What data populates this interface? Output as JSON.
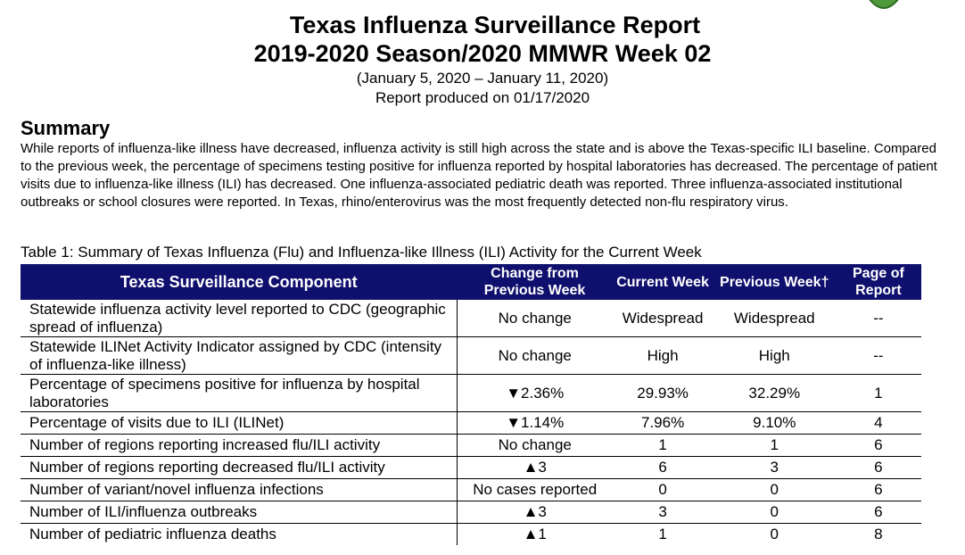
{
  "report": {
    "title_line1": "Texas Influenza Surveillance Report",
    "title_line2": "2019-2020 Season/2020 MMWR Week 02",
    "date_range": "(January 5, 2020 – January 11, 2020)",
    "produced": "Report produced on 01/17/2020"
  },
  "summary": {
    "heading": "Summary",
    "text": "While reports of influenza-like illness have decreased, influenza activity is still high across the state and is above the Texas-specific ILI baseline. Compared to the previous week, the percentage of specimens testing positive for influenza reported by hospital laboratories has decreased. The percentage of patient visits due to influenza-like illness (ILI) has decreased. One influenza-associated pediatric death was reported. Three influenza-associated institutional outbreaks or school closures were reported.  In Texas, rhino/enterovirus was the most frequently detected non-flu respiratory virus."
  },
  "table": {
    "caption": "Table 1: Summary of Texas Influenza (Flu) and Influenza-like Illness (ILI) Activity for the Current Week",
    "headers": {
      "component": "Texas Surveillance Component",
      "change": "Change from Previous Week",
      "current": "Current Week",
      "previous": "Previous Week†",
      "page": "Page of Report"
    },
    "rows": [
      {
        "component": "Statewide influenza activity level reported to CDC (geographic spread of influenza)",
        "change": "No change",
        "current": "Widespread",
        "previous": "Widespread",
        "page": "--"
      },
      {
        "component": "Statewide ILINet Activity Indicator assigned by CDC (intensity of influenza-like illness)",
        "change": "No change",
        "current": "High",
        "previous": "High",
        "page": "--"
      },
      {
        "component": "Percentage of specimens positive for influenza by hospital laboratories",
        "change": "▼2.36%",
        "current": "29.93%",
        "previous": "32.29%",
        "page": "1"
      },
      {
        "component": "Percentage of visits due to ILI (ILINet)",
        "change": "▼1.14%",
        "current": "7.96%",
        "previous": "9.10%",
        "page": "4"
      },
      {
        "component": "Number of regions reporting increased flu/ILI activity",
        "change": "No change",
        "current": "1",
        "previous": "1",
        "page": "6"
      },
      {
        "component": "Number of regions reporting decreased flu/ILI activity",
        "change": "▲3",
        "current": "6",
        "previous": "3",
        "page": "6"
      },
      {
        "component": "Number of variant/novel influenza infections",
        "change": "No cases reported",
        "current": "0",
        "previous": "0",
        "page": "6"
      },
      {
        "component": "Number of ILI/influenza outbreaks",
        "change": "▲3",
        "current": "3",
        "previous": "0",
        "page": "6"
      },
      {
        "component": "Number of pediatric influenza deaths",
        "change": "▲1",
        "current": "1",
        "previous": "0",
        "page": "8"
      }
    ]
  }
}
